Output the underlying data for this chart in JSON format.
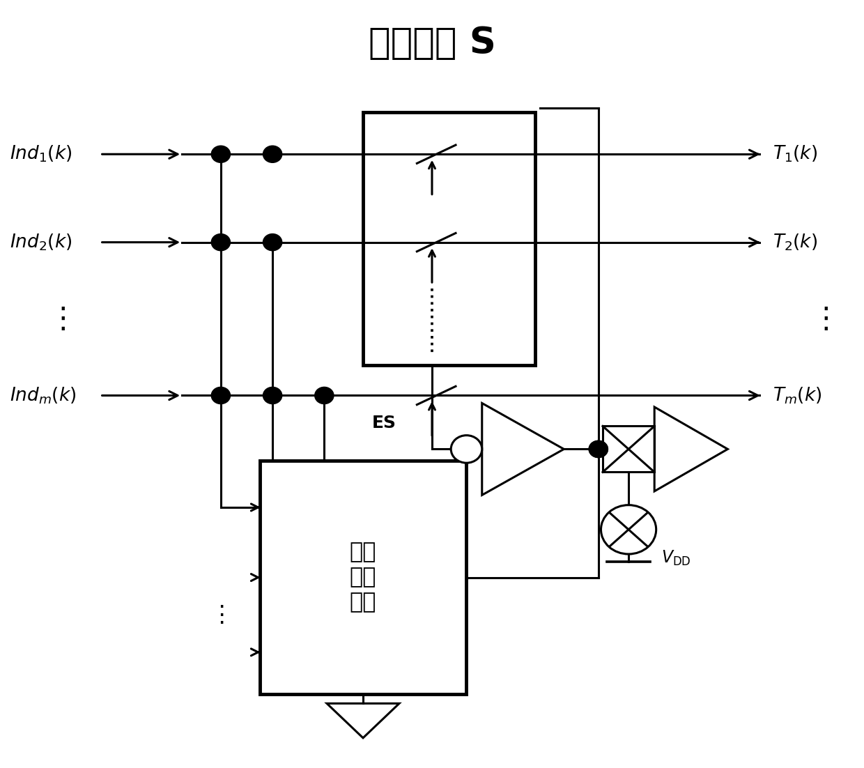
{
  "title": "组合开关 S",
  "title_fontsize": 38,
  "bg_color": "#ffffff",
  "line_color": "#000000",
  "line_width": 2.2,
  "fig_width": 12.4,
  "fig_height": 11.02,
  "inputs": [
    "$\\mathit{Ind}_1(k)$",
    "$\\mathit{Ind}_2(k)$",
    "$\\mathit{Ind}_m(k)$"
  ],
  "outputs": [
    "$T_1(k)$",
    "$T_2(k)$",
    "$T_m(k)$"
  ],
  "logic_text": "逻辑\n决策\n模块",
  "es_label": "ES",
  "vdd_label": "$V_{\\mathrm{DD}}$"
}
